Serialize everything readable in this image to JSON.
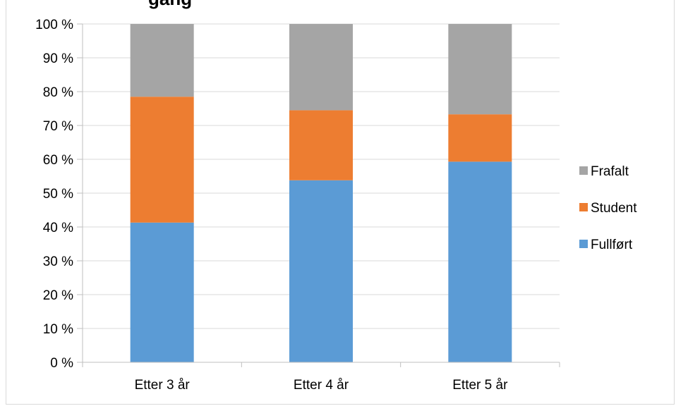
{
  "chart_data": {
    "type": "bar",
    "stacked": true,
    "title": "gang",
    "categories": [
      "Etter 3 år",
      "Etter 4 år",
      "Etter 5 år"
    ],
    "series": [
      {
        "name": "Fullført",
        "values": [
          41.3,
          53.8,
          59.3
        ],
        "color": "#5b9bd5"
      },
      {
        "name": "Student",
        "values": [
          37.2,
          20.7,
          14.0
        ],
        "color": "#ed7d31"
      },
      {
        "name": "Frafalt",
        "values": [
          21.5,
          25.5,
          26.7
        ],
        "color": "#a5a5a5"
      }
    ],
    "ylim": [
      0,
      100
    ],
    "yticks": [
      "0 %",
      "10 %",
      "20 %",
      "30 %",
      "40 %",
      "50 %",
      "60 %",
      "70 %",
      "80 %",
      "90 %",
      "100 %"
    ],
    "grid": true,
    "legend_position": "right",
    "legend_order": [
      "Frafalt",
      "Student",
      "Fullført"
    ]
  }
}
